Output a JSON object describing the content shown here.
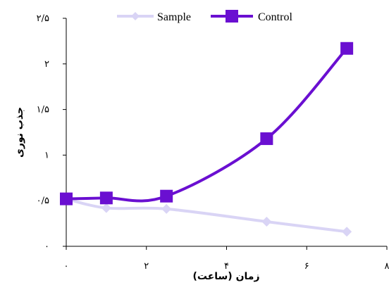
{
  "chart_data": {
    "type": "line",
    "xlabel": "زمان (ساعت)",
    "ylabel": "جذب نوری",
    "xlim": [
      0,
      8
    ],
    "ylim": [
      0,
      2.5
    ],
    "x_ticks": [
      0,
      2,
      4,
      6,
      8
    ],
    "x_tick_labels": [
      "۰",
      "۲",
      "۴",
      "۶",
      "۸"
    ],
    "y_ticks": [
      0,
      0.5,
      1,
      1.5,
      2,
      2.5
    ],
    "y_tick_labels": [
      "۰",
      "۰/۵",
      "۱",
      "۱/۵",
      "۲",
      "۲/۵"
    ],
    "grid": false,
    "legend_position": "top",
    "series": [
      {
        "name": "Sample",
        "color": "#d9d4f5",
        "marker": "diamond",
        "x": [
          0,
          1,
          2.5,
          5,
          7
        ],
        "y": [
          0.52,
          0.42,
          0.41,
          0.27,
          0.16
        ]
      },
      {
        "name": "Control",
        "color": "#6a0fd1",
        "marker": "square",
        "x": [
          0,
          1,
          2.5,
          5,
          7
        ],
        "y": [
          0.52,
          0.53,
          0.55,
          1.18,
          2.17
        ]
      }
    ]
  }
}
